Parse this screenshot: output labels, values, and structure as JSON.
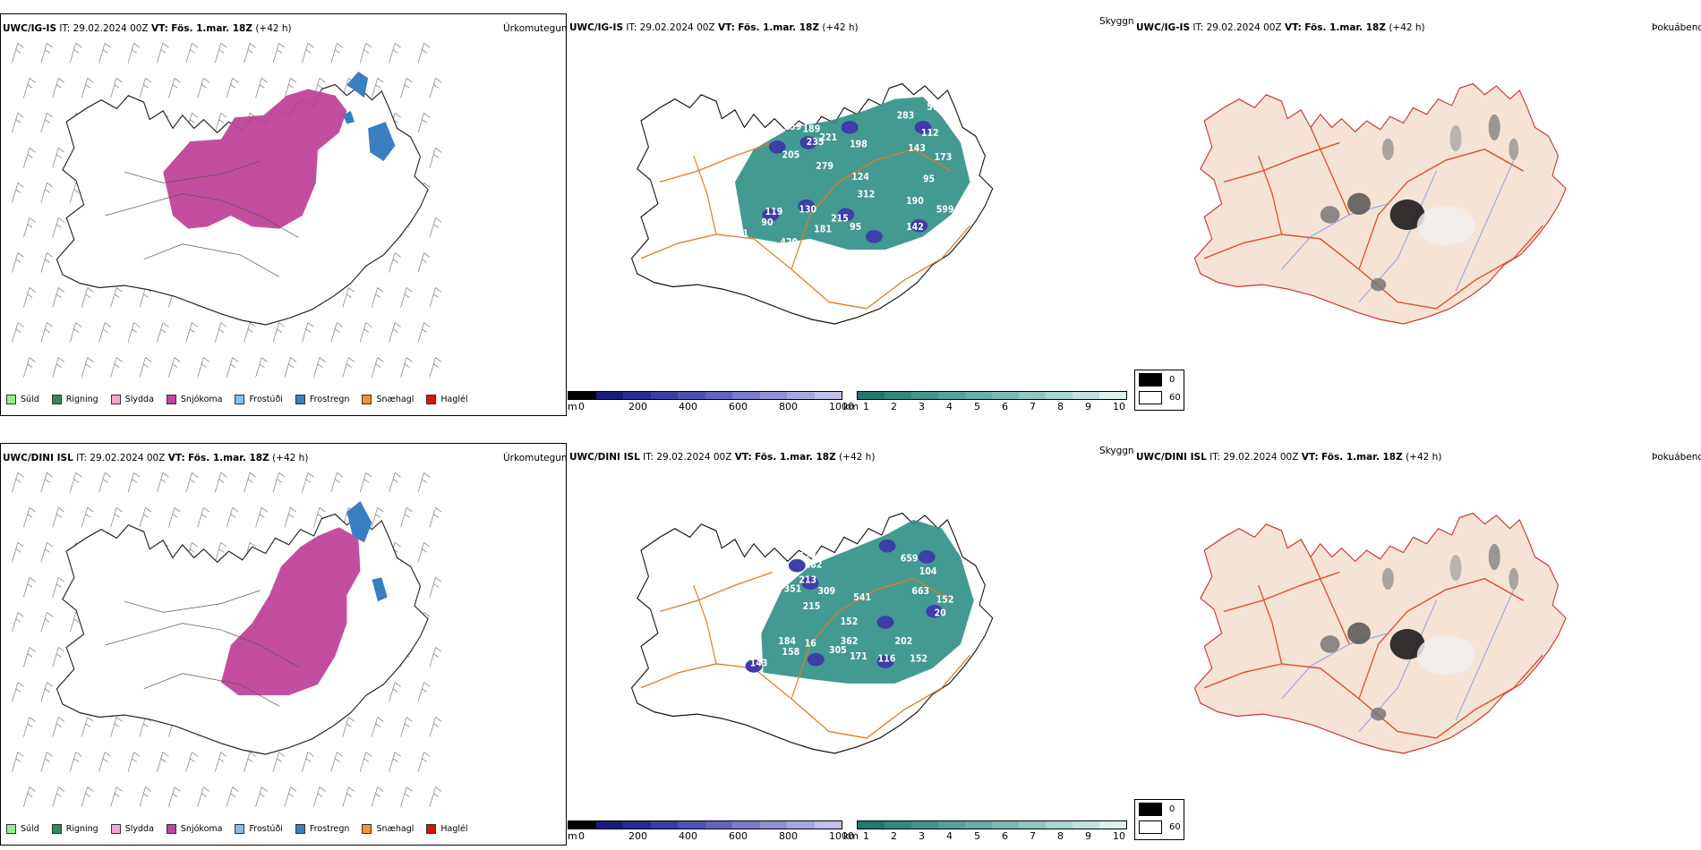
{
  "rows": [
    {
      "model": "UWC/IG-IS",
      "it_label": "IT:",
      "it_value": "29.02.2024 00Z",
      "vt_label": "VT:",
      "vt_value": "Fös. 1.mar. 18Z",
      "lead": "(+42 h)",
      "cloud_peaks": [
        "176",
        "159",
        "189",
        "221",
        "235",
        "205",
        "557",
        "279",
        "198",
        "283",
        "566",
        "112",
        "143",
        "173",
        "95",
        "124",
        "312",
        "190",
        "599",
        "119",
        "90",
        "130",
        "215",
        "181",
        "95",
        "142",
        "420",
        "11"
      ]
    },
    {
      "model": "UWC/DINI ISL",
      "it_label": "IT:",
      "it_value": "29.02.2024 00Z",
      "vt_label": "VT:",
      "vt_value": "Fös. 1.mar. 18Z",
      "lead": "(+42 h)",
      "cloud_peaks": [
        "570",
        "177",
        "209",
        "282",
        "213",
        "351",
        "309",
        "541",
        "659",
        "104",
        "663",
        "152",
        "20",
        "215",
        "152",
        "362",
        "202",
        "184",
        "158",
        "16",
        "305",
        "171",
        "116",
        "152",
        "143"
      ]
    }
  ],
  "panel_titles": {
    "precip_type": "Úrkomutegund",
    "visibility": "Skyggni",
    "fog_index": "Þokuábendi"
  },
  "precip_legend": [
    {
      "label": "Súld",
      "color": "#90ee90"
    },
    {
      "label": "Rigning",
      "color": "#2e8b57"
    },
    {
      "label": "Slydda",
      "color": "#f4a6d0"
    },
    {
      "label": "Snjókoma",
      "color": "#c0449a"
    },
    {
      "label": "Frostúði",
      "color": "#87bde8"
    },
    {
      "label": "Frostregn",
      "color": "#3a7ec2"
    },
    {
      "label": "Snæhagl",
      "color": "#f0962e"
    },
    {
      "label": "Haglél",
      "color": "#e01010"
    }
  ],
  "cloud_base_bar": {
    "unit": "m",
    "ticks": [
      "0",
      "200",
      "400",
      "600",
      "800",
      "1000"
    ],
    "colors": [
      "#000000",
      "#1a1a7a",
      "#2b2b94",
      "#3d3da6",
      "#5050b3",
      "#6464bf",
      "#7a7acc",
      "#9090d6",
      "#a8a8e0",
      "#c0c0ea"
    ]
  },
  "visibility_bar": {
    "unit": "km",
    "ticks": [
      "1",
      "2",
      "3",
      "4",
      "5",
      "6",
      "7",
      "8",
      "9",
      "10"
    ],
    "colors": [
      "#1f7a70",
      "#2e8a80",
      "#3f978d",
      "#52a39a",
      "#66aea6",
      "#7bbab3",
      "#92c7c1",
      "#aad4cf",
      "#c3e1dd",
      "#dff0ee"
    ]
  },
  "fog_legend": {
    "items": [
      {
        "label": "0",
        "color": "#000000"
      },
      {
        "label": "60",
        "color": "#ffffff"
      }
    ]
  },
  "colors": {
    "snow": "#c0449a",
    "freezing_rain": "#3a7ec2",
    "cloud_green": "#2f8f85",
    "roads": "#e57a1f",
    "fog_land": "#f5e4d6",
    "fog_roads": "#e2502a",
    "fog_rivers": "#7f9cf0"
  }
}
